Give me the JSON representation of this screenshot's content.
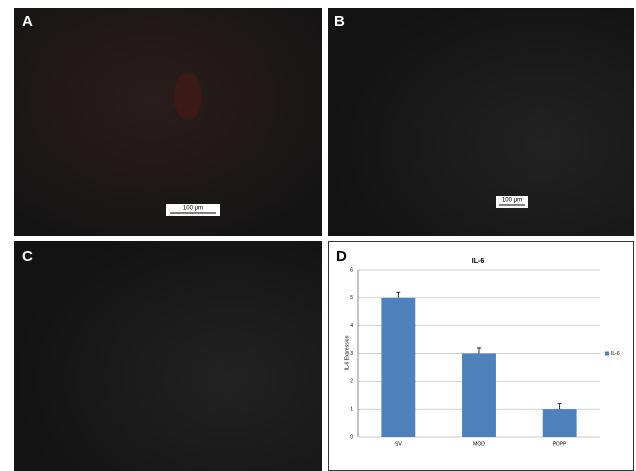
{
  "panels": {
    "a": {
      "label": "A",
      "scale_bar": "100 μm"
    },
    "b": {
      "label": "B",
      "scale_bar": "100 μm"
    },
    "c": {
      "label": "C"
    },
    "d": {
      "label": "D"
    }
  },
  "chart_data": {
    "type": "bar",
    "title": "IL-6",
    "y_label": "IL-6 Expression",
    "categories": [
      "SV",
      "MOD",
      "PDPP"
    ],
    "series": [
      {
        "name": "IL-6",
        "color": "#4f81bd",
        "values": [
          5,
          3,
          1
        ],
        "errors": [
          0.2,
          0.2,
          0.2
        ]
      }
    ],
    "ylim": [
      0,
      6
    ],
    "yticks": [
      0,
      1,
      2,
      3,
      4,
      5,
      6
    ],
    "grid": true,
    "legend": "right"
  }
}
